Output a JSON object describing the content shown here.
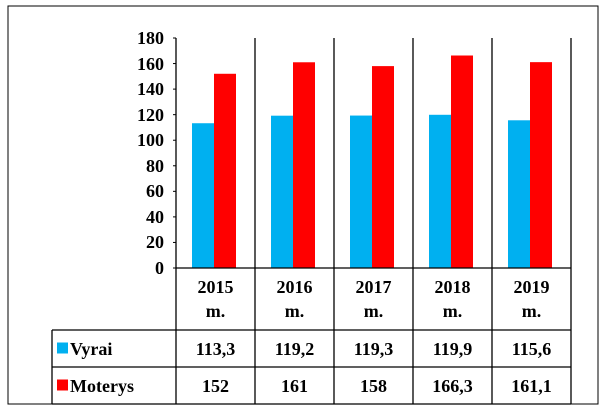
{
  "chart_data": {
    "type": "bar",
    "categories": [
      "2015 m.",
      "2016 m.",
      "2017 m.",
      "2018 m.",
      "2019 m."
    ],
    "series": [
      {
        "name": "Vyrai",
        "color": "#00b0f0",
        "values": [
          113.3,
          119.2,
          119.3,
          119.9,
          115.6
        ],
        "value_labels": [
          "113,3",
          "119,2",
          "119,3",
          "119,9",
          "115,6"
        ]
      },
      {
        "name": "Moterys",
        "color": "#ff0000",
        "values": [
          152,
          161,
          158,
          166.3,
          161.1
        ],
        "value_labels": [
          "152",
          "161",
          "158",
          "166,3",
          "161,1"
        ]
      }
    ],
    "ylim": [
      0,
      180
    ],
    "yticks": [
      0,
      20,
      40,
      60,
      80,
      100,
      120,
      140,
      160,
      180
    ]
  }
}
